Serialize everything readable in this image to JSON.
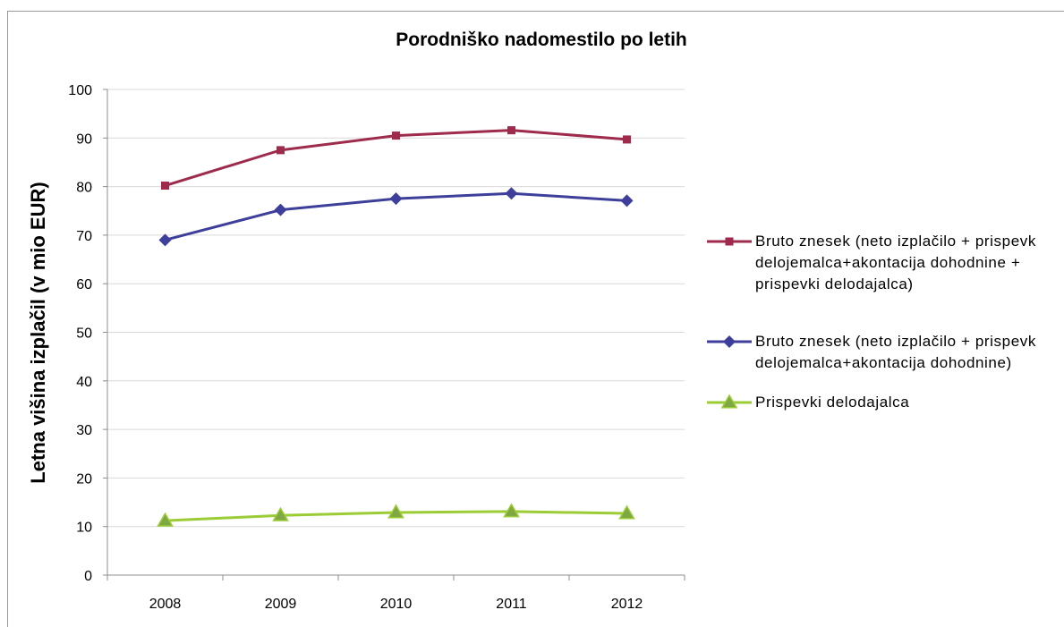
{
  "chart_data": {
    "type": "line",
    "title": "Porodniško nadomestilo po letih",
    "xlabel": "",
    "ylabel": "Letna višina izplačil (v mio EUR)",
    "categories": [
      "2008",
      "2009",
      "2010",
      "2011",
      "2012"
    ],
    "ylim": [
      0,
      100
    ],
    "yticks": [
      "0",
      "10",
      "20",
      "30",
      "40",
      "50",
      "60",
      "70",
      "80",
      "90",
      "100"
    ],
    "grid": true,
    "legend_position": "right",
    "series": [
      {
        "name": "Bruto znesek (neto izplačilo + prispevk delojemalca+akontacija dohodnine + prispevki delodajalca)",
        "name_lines": [
          "Bruto znesek (neto izplačilo + prispevk",
          "delojemalca+akontacija dohodnine +",
          "prispevki delodajalca)"
        ],
        "values": [
          80.2,
          87.5,
          90.5,
          91.6,
          89.7
        ],
        "color": "#9e2b4c",
        "marker": "square"
      },
      {
        "name": "Bruto znesek (neto izplačilo + prispevk delojemalca+akontacija dohodnine)",
        "name_lines": [
          "Bruto znesek (neto izplačilo + prispevk",
          "delojemalca+akontacija dohodnine)"
        ],
        "values": [
          69.0,
          75.2,
          77.5,
          78.6,
          77.1
        ],
        "color": "#3d3f9b",
        "marker": "diamond"
      },
      {
        "name": "Prispevki delodajalca",
        "name_lines": [
          "Prispevki delodajalca"
        ],
        "values": [
          11.2,
          12.3,
          12.9,
          13.1,
          12.7
        ],
        "color": "#9bcc35",
        "marker_fill": "#7fa843",
        "marker": "triangle"
      }
    ]
  }
}
